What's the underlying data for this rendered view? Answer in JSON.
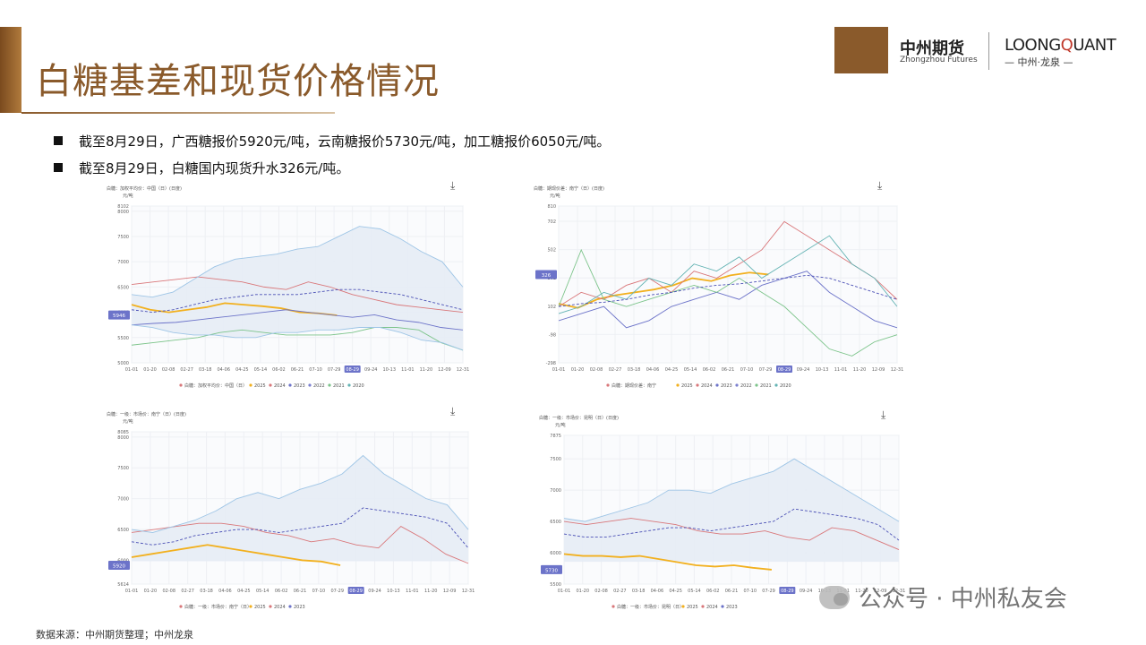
{
  "header": {
    "title": "白糖基差和现货价格情况",
    "logo_cn": "中州期货",
    "logo_en": "Zhongzhou Futures",
    "logo_lq_a": "LOONG",
    "logo_lq_q": "Q",
    "logo_lq_b": "UANT",
    "logo_lq_sub": "— 中州·龙泉 —"
  },
  "bullets": [
    "截至8月29日，广西糖报价5920元/吨，云南糖报价5730元/吨，加工糖报价6050元/吨。",
    "截至8月29日，白糖国内现货升水326元/吨。"
  ],
  "footer": {
    "source": "数据来源：中州期货整理；中州龙泉",
    "watermark": "公众号 · 中州私友会"
  },
  "colors": {
    "y2025": "#f2b01e",
    "y2024": "#d9777a",
    "y2023": "#6c73c9",
    "y2022": "#7b7fd0",
    "y2021": "#7cc48a",
    "y2020": "#63b3b3",
    "band": "#e6ecf5",
    "bandLine": "#9ec5e6",
    "dashed": "#4a4fb5"
  },
  "chart_data": [
    {
      "type": "line",
      "title": "白糖：加权平均价：中国（日）(日度)",
      "ylabel": "元/吨",
      "ylim": [
        5000,
        8102
      ],
      "yticks": [
        "8102",
        "8000",
        "7500",
        "7000",
        "6500",
        "6000",
        "5500",
        "5000"
      ],
      "current_label": "5946",
      "current_value": 5946,
      "xticks": [
        "01-01",
        "01-20",
        "02-08",
        "02-27",
        "03-18",
        "04-06",
        "04-25",
        "05-14",
        "06-02",
        "06-21",
        "07-10",
        "07-29",
        "08-29",
        "09-24",
        "10-13",
        "11-01",
        "11-20",
        "12-09",
        "12-31"
      ],
      "highlight_x": "08-29",
      "legend": [
        "白糖：加权平均价：中国（日）",
        "2025",
        "2024",
        "2023",
        "2022",
        "2021",
        "2020"
      ],
      "series": [
        {
          "name": "2025",
          "color_key": "y2025",
          "values": [
            6150,
            6050,
            6000,
            6050,
            6100,
            6180,
            6150,
            6120,
            6080,
            6000,
            5980,
            5940
          ]
        },
        {
          "name": "2024",
          "color_key": "y2024",
          "values": [
            6550,
            6600,
            6650,
            6700,
            6650,
            6600,
            6500,
            6450,
            6600,
            6500,
            6350,
            6250,
            6150,
            6100,
            6050,
            6000
          ]
        },
        {
          "name": "2023",
          "color_key": "y2023",
          "values": [
            5750,
            5780,
            5800,
            5850,
            5900,
            5950,
            6000,
            6050,
            6000,
            5950,
            5900,
            5950,
            5850,
            5800,
            5700,
            5650
          ]
        },
        {
          "name": "2021",
          "color_key": "y2021",
          "values": [
            5350,
            5400,
            5450,
            5500,
            5600,
            5650,
            5600,
            5550,
            5550,
            5550,
            5600,
            5700,
            5700,
            5650,
            5400,
            5250
          ]
        },
        {
          "name": "band_high",
          "color_key": "bandLine",
          "values": [
            6350,
            6300,
            6400,
            6650,
            6900,
            7050,
            7100,
            7150,
            7250,
            7300,
            7500,
            7700,
            7650,
            7450,
            7200,
            7000,
            6500
          ]
        },
        {
          "name": "band_low",
          "color_key": "bandLine",
          "values": [
            5750,
            5700,
            5600,
            5550,
            5550,
            5500,
            5500,
            5600,
            5600,
            5650,
            5650,
            5700,
            5700,
            5600,
            5450,
            5400,
            5250
          ]
        },
        {
          "name": "mean",
          "color_key": "dashed",
          "values": [
            6050,
            6000,
            6050,
            6150,
            6250,
            6300,
            6350,
            6350,
            6350,
            6400,
            6450,
            6450,
            6400,
            6350,
            6250,
            6150,
            6050
          ]
        }
      ]
    },
    {
      "type": "line",
      "title": "白糖：期现价差：南宁（日）(日度)",
      "ylabel": "元/吨",
      "ylim": [
        -298,
        810
      ],
      "yticks": [
        "810",
        "702",
        "502",
        "302",
        "102",
        "-98",
        "-298"
      ],
      "current_label": "326",
      "current_value": 326,
      "xticks": [
        "01-01",
        "01-20",
        "02-08",
        "02-27",
        "03-18",
        "04-06",
        "04-25",
        "05-14",
        "06-02",
        "06-21",
        "07-10",
        "07-29",
        "08-29",
        "09-24",
        "10-13",
        "11-01",
        "11-20",
        "12-09",
        "12-31"
      ],
      "highlight_x": "08-29",
      "legend": [
        "白糖：期现价差：南宁",
        "2025",
        "2024",
        "2023",
        "2022",
        "2021",
        "2020"
      ],
      "series": [
        {
          "name": "2025",
          "color_key": "y2025",
          "values": [
            120,
            90,
            150,
            180,
            200,
            220,
            250,
            300,
            280,
            320,
            340,
            326
          ]
        },
        {
          "name": "2024",
          "color_key": "y2024",
          "values": [
            100,
            200,
            150,
            250,
            300,
            200,
            350,
            300,
            400,
            500,
            700,
            600,
            500,
            400,
            300,
            150
          ]
        },
        {
          "name": "2023",
          "color_key": "y2023",
          "values": [
            0,
            50,
            100,
            -50,
            0,
            100,
            150,
            200,
            150,
            250,
            300,
            350,
            200,
            100,
            0,
            -50
          ]
        },
        {
          "name": "2021",
          "color_key": "y2021",
          "values": [
            100,
            500,
            150,
            100,
            150,
            200,
            250,
            200,
            300,
            200,
            100,
            -50,
            -200,
            -250,
            -150,
            -100
          ]
        },
        {
          "name": "2020",
          "color_key": "y2020",
          "values": [
            50,
            100,
            200,
            150,
            300,
            250,
            400,
            350,
            450,
            300,
            400,
            500,
            600,
            400,
            300,
            100
          ]
        },
        {
          "name": "mean",
          "color_key": "dashed",
          "values": [
            100,
            120,
            130,
            150,
            180,
            200,
            230,
            250,
            260,
            280,
            300,
            320,
            300,
            250,
            200,
            150
          ]
        }
      ]
    },
    {
      "type": "line",
      "title": "白糖：一级：市场价：南宁（日）(日度)",
      "ylabel": "元/吨",
      "ylim": [
        5614,
        8085
      ],
      "yticks": [
        "8085",
        "8000",
        "7500",
        "7000",
        "6500",
        "6000",
        "5614"
      ],
      "current_label": "5920",
      "current_value": 5920,
      "xticks": [
        "01-01",
        "01-20",
        "02-08",
        "02-27",
        "03-18",
        "04-06",
        "04-25",
        "05-14",
        "06-02",
        "06-21",
        "07-10",
        "07-29",
        "08-29",
        "09-24",
        "10-13",
        "11-01",
        "11-20",
        "12-09",
        "12-31"
      ],
      "highlight_x": "08-29",
      "legend": [
        "白糖：一级：市场价：南宁（日）",
        "2025",
        "2024",
        "2023"
      ],
      "series": [
        {
          "name": "2025",
          "color_key": "y2025",
          "values": [
            6050,
            6100,
            6150,
            6200,
            6250,
            6200,
            6150,
            6100,
            6050,
            6000,
            5980,
            5920
          ]
        },
        {
          "name": "2024",
          "color_key": "y2024",
          "values": [
            6450,
            6500,
            6550,
            6600,
            6600,
            6550,
            6450,
            6400,
            6300,
            6350,
            6250,
            6200,
            6550,
            6350,
            6100,
            5950
          ]
        },
        {
          "name": "band_high",
          "color_key": "bandLine",
          "values": [
            6500,
            6450,
            6550,
            6650,
            6800,
            7000,
            7100,
            7000,
            7150,
            7250,
            7400,
            7700,
            7400,
            7200,
            7000,
            6900,
            6500
          ]
        },
        {
          "name": "mean",
          "color_key": "dashed",
          "values": [
            6300,
            6250,
            6300,
            6400,
            6450,
            6500,
            6500,
            6450,
            6500,
            6550,
            6600,
            6850,
            6800,
            6750,
            6700,
            6600,
            6200
          ]
        }
      ]
    },
    {
      "type": "line",
      "title": "白糖：一级：市场价：昆明（日）(日度)",
      "ylabel": "元/吨",
      "ylim": [
        5500,
        7875
      ],
      "yticks": [
        "7875",
        "7500",
        "7000",
        "6500",
        "6000",
        "5500"
      ],
      "current_label": "5730",
      "current_value": 5730,
      "xticks": [
        "01-01",
        "01-20",
        "02-08",
        "02-27",
        "03-18",
        "04-06",
        "04-25",
        "05-14",
        "06-02",
        "06-21",
        "07-10",
        "07-29",
        "08-29",
        "09-24",
        "10-13",
        "11-01",
        "11-20",
        "12-09",
        "12-31"
      ],
      "highlight_x": "08-29",
      "legend": [
        "白糖：一级：市场价：昆明（日）",
        "2025",
        "2024",
        "2023"
      ],
      "series": [
        {
          "name": "2025",
          "color_key": "y2025",
          "values": [
            5980,
            5950,
            5950,
            5930,
            5950,
            5900,
            5850,
            5800,
            5780,
            5800,
            5760,
            5730
          ]
        },
        {
          "name": "2024",
          "color_key": "y2024",
          "values": [
            6500,
            6450,
            6500,
            6550,
            6500,
            6450,
            6350,
            6300,
            6300,
            6350,
            6250,
            6200,
            6400,
            6350,
            6200,
            6050
          ]
        },
        {
          "name": "band_high",
          "color_key": "bandLine",
          "values": [
            6550,
            6500,
            6600,
            6700,
            6800,
            7000,
            7000,
            6950,
            7100,
            7200,
            7300,
            7500,
            7300,
            7100,
            6900,
            6700,
            6500
          ]
        },
        {
          "name": "mean",
          "color_key": "dashed",
          "values": [
            6300,
            6250,
            6250,
            6300,
            6350,
            6400,
            6400,
            6350,
            6400,
            6450,
            6500,
            6700,
            6650,
            6600,
            6550,
            6450,
            6200
          ]
        }
      ]
    }
  ]
}
